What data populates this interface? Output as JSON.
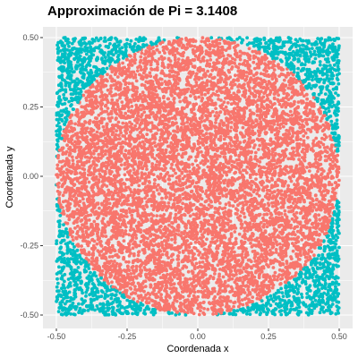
{
  "chart_data": {
    "type": "scatter",
    "title": "Approximación de Pi = 3.1408",
    "xlabel": "Coordenada x",
    "ylabel": "Coordenada y",
    "xlim": [
      -0.5,
      0.5
    ],
    "ylim": [
      -0.5,
      0.5
    ],
    "x_ticks": [
      -0.5,
      -0.25,
      0.0,
      0.25,
      0.5
    ],
    "y_ticks": [
      -0.5,
      -0.25,
      0.0,
      0.25,
      0.5
    ],
    "x_tick_labels": [
      "-0.50",
      "-0.25",
      "0.00",
      "0.25",
      "0.50"
    ],
    "y_tick_labels": [
      "-0.50",
      "-0.25",
      "0.00",
      "0.25",
      "0.50"
    ],
    "grid": true,
    "legend": "none",
    "n_points": 10000,
    "circle_center": [
      0,
      0
    ],
    "circle_radius": 0.5,
    "series": [
      {
        "color": "#F8766D",
        "region": "inside circle"
      },
      {
        "color": "#00BFC4",
        "region": "outside circle"
      }
    ],
    "panel_background": "#EBEBEB",
    "grid_color": "#FFFFFF"
  }
}
